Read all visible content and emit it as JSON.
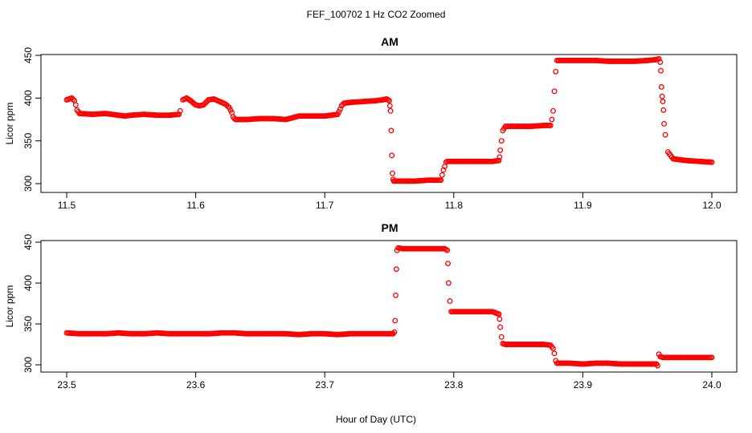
{
  "title": "FEF_100702  1 Hz CO2 Zoomed",
  "xlabel": "Hour of Day (UTC)",
  "colors": {
    "points": "#ff0000",
    "axes": "#000000",
    "background": "#ffffff"
  },
  "chart_data": [
    {
      "type": "scatter",
      "title": "AM",
      "ylabel": "Licor ppm",
      "xlim": [
        11.5,
        12.0
      ],
      "ylim": [
        300,
        450
      ],
      "xticks": [
        "11.5",
        "11.6",
        "11.7",
        "11.8",
        "11.9",
        "12.0"
      ],
      "yticks": [
        "300",
        "350",
        "400",
        "450"
      ],
      "grid": false,
      "series": [
        {
          "x": [
            11.5,
            11.502,
            11.504,
            11.506,
            11.507,
            11.508,
            11.51,
            11.52,
            11.53,
            11.535,
            11.54,
            11.545,
            11.55,
            11.56,
            11.57,
            11.58,
            11.587,
            11.588,
            11.59,
            11.593,
            11.596,
            11.6,
            11.603,
            11.606,
            11.61,
            11.614,
            11.617,
            11.62,
            11.623,
            11.626,
            11.628,
            11.629,
            11.63,
            11.631,
            11.633,
            11.64,
            11.65,
            11.66,
            11.67,
            11.68,
            11.69,
            11.7,
            11.71,
            11.712,
            11.713,
            11.715,
            11.72,
            11.73,
            11.74,
            11.745,
            11.748,
            11.75,
            11.7505,
            11.751,
            11.7515,
            11.752,
            11.7525,
            11.753,
            11.7535,
            11.754,
            11.755,
            11.76,
            11.77,
            11.78,
            11.79,
            11.791,
            11.792,
            11.793,
            11.794,
            11.795,
            11.8,
            11.81,
            11.82,
            11.83,
            11.835,
            11.8355,
            11.836,
            11.837,
            11.838,
            11.84,
            11.85,
            11.86,
            11.87,
            11.875,
            11.876,
            11.877,
            11.878,
            11.879,
            11.88,
            11.89,
            11.9,
            11.91,
            11.92,
            11.93,
            11.94,
            11.95,
            11.957,
            11.959,
            11.96,
            11.9605,
            11.961,
            11.9615,
            11.962,
            11.9625,
            11.963,
            11.964,
            11.966,
            11.97,
            11.98,
            11.99,
            12.0
          ],
          "y": [
            398,
            399,
            400,
            397,
            392,
            386,
            382,
            381,
            382,
            381,
            380,
            379,
            380,
            381,
            380,
            380,
            381,
            385,
            398,
            400,
            397,
            392,
            391,
            392,
            398,
            399,
            397,
            395,
            393,
            389,
            383,
            378,
            376,
            375,
            375,
            375,
            376,
            376,
            375,
            379,
            379,
            379,
            381,
            387,
            391,
            394,
            395,
            396,
            397,
            398,
            399,
            397,
            391,
            385,
            362,
            333,
            312,
            305,
            303,
            303,
            303,
            303,
            303,
            304,
            304,
            310,
            316,
            320,
            325,
            326,
            326,
            326,
            326,
            326,
            327,
            331,
            339,
            350,
            362,
            367,
            367,
            367,
            368,
            368,
            375,
            385,
            408,
            431,
            444,
            444,
            444,
            444,
            443,
            443,
            443,
            444,
            445,
            446,
            442,
            432,
            413,
            402,
            396,
            386,
            370,
            357,
            337,
            329,
            327,
            326,
            325
          ]
        }
      ]
    },
    {
      "type": "scatter",
      "title": "PM",
      "ylabel": "Licor ppm",
      "xlim": [
        23.5,
        24.0
      ],
      "ylim": [
        300,
        450
      ],
      "xticks": [
        "23.5",
        "23.6",
        "23.7",
        "23.8",
        "23.9",
        "24.0"
      ],
      "yticks": [
        "300",
        "350",
        "400",
        "450"
      ],
      "grid": false,
      "series": [
        {
          "x": [
            23.5,
            23.51,
            23.52,
            23.53,
            23.54,
            23.55,
            23.56,
            23.57,
            23.58,
            23.59,
            23.6,
            23.61,
            23.62,
            23.63,
            23.64,
            23.65,
            23.66,
            23.67,
            23.68,
            23.69,
            23.7,
            23.71,
            23.72,
            23.73,
            23.74,
            23.75,
            23.753,
            23.754,
            23.7545,
            23.755,
            23.7555,
            23.756,
            23.757,
            23.76,
            23.77,
            23.78,
            23.79,
            23.793,
            23.795,
            23.7955,
            23.796,
            23.797,
            23.798,
            23.8,
            23.81,
            23.82,
            23.83,
            23.835,
            23.8355,
            23.836,
            23.837,
            23.838,
            23.84,
            23.85,
            23.86,
            23.87,
            23.875,
            23.877,
            23.878,
            23.879,
            23.88,
            23.89,
            23.9,
            23.91,
            23.92,
            23.93,
            23.94,
            23.95,
            23.955,
            23.957,
            23.958,
            23.959,
            23.96,
            23.962,
            23.965,
            23.97,
            23.98,
            23.99,
            24.0
          ],
          "y": [
            339,
            338,
            338,
            338,
            339,
            338,
            338,
            339,
            338,
            338,
            338,
            338,
            339,
            339,
            338,
            338,
            338,
            338,
            337,
            338,
            338,
            337,
            338,
            338,
            338,
            338,
            338,
            340,
            354,
            385,
            417,
            440,
            443,
            442,
            442,
            442,
            442,
            442,
            440,
            424,
            400,
            378,
            365,
            365,
            365,
            365,
            365,
            362,
            356,
            346,
            334,
            326,
            325,
            325,
            325,
            325,
            324,
            320,
            314,
            305,
            302,
            302,
            301,
            302,
            302,
            301,
            301,
            301,
            301,
            301,
            299,
            313,
            310,
            309,
            309,
            309,
            309,
            309,
            309
          ]
        }
      ]
    }
  ]
}
